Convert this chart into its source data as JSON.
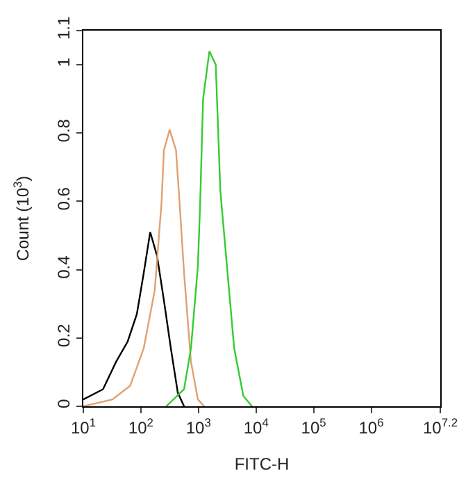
{
  "chart_data": {
    "type": "line",
    "xlabel": "FITC-H",
    "ylabel": "Count (10$^{3}$)",
    "log": "x",
    "xlim": [
      10,
      15848932
    ],
    "xticks": [
      {
        "value": 10,
        "label": "10$^{1}$"
      },
      {
        "value": 100,
        "label": "10$^{2}$"
      },
      {
        "value": 1000,
        "label": "10$^{3}$"
      },
      {
        "value": 10000,
        "label": "10$^{4}$"
      },
      {
        "value": 100000,
        "label": "10$^{5}$"
      },
      {
        "value": 1000000,
        "label": "10$^{6}$"
      },
      {
        "value": 15848932,
        "label": "10$^{7.2}$"
      }
    ],
    "ylim": [
      0,
      1.1
    ],
    "yticks": [
      0,
      0.2,
      0.4,
      0.6,
      0.8,
      1,
      1.1
    ],
    "marker": "none",
    "line_style": "solid",
    "series": [
      {
        "color": "#000000",
        "x": [
          10,
          22,
          37,
          59,
          85,
          112,
          145,
          191,
          251,
          331,
          437,
          562
        ],
        "values": [
          0.02,
          0.05,
          0.13,
          0.19,
          0.27,
          0.39,
          0.51,
          0.44,
          0.31,
          0.17,
          0.04,
          0
        ]
      },
      {
        "color": "#e0a070",
        "x": [
          10,
          32,
          65,
          112,
          174,
          229,
          251,
          316,
          407,
          468,
          562,
          741,
          977,
          1259
        ],
        "values": [
          0,
          0.02,
          0.06,
          0.17,
          0.34,
          0.6,
          0.75,
          0.81,
          0.75,
          0.6,
          0.39,
          0.13,
          0.02,
          0
        ]
      },
      {
        "color": "#33cc33",
        "x": [
          275,
          562,
          741,
          977,
          1072,
          1202,
          1549,
          1995,
          2399,
          3162,
          4169,
          6026,
          8511
        ],
        "values": [
          0,
          0.05,
          0.17,
          0.41,
          0.6,
          0.9,
          1.04,
          1.0,
          0.63,
          0.4,
          0.17,
          0.03,
          0
        ]
      }
    ]
  }
}
